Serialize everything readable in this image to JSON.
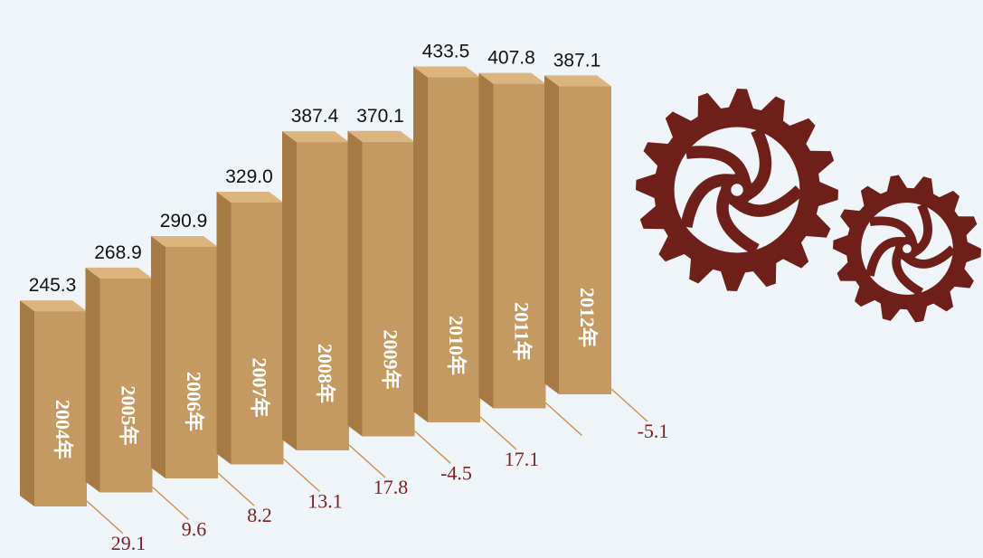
{
  "chart_data": {
    "type": "bar3d",
    "categories": [
      "2004年",
      "2005年",
      "2006年",
      "2007年",
      "2008年",
      "2009年",
      "2010年",
      "2011年",
      "2012年"
    ],
    "values": [
      245.3,
      268.9,
      290.9,
      329.0,
      387.4,
      370.1,
      433.5,
      407.8,
      387.1
    ],
    "value_labels": [
      "245.3",
      "268.9",
      "290.9",
      "329.0",
      "387.4",
      "370.1",
      "433.5",
      "407.8",
      "387.1"
    ],
    "growth": [
      29.1,
      9.6,
      8.2,
      13.1,
      17.8,
      -4.5,
      17.1,
      null,
      -5.1
    ],
    "growth_labels": [
      "29.1",
      "9.6",
      "8.2",
      "13.1",
      "17.8",
      "-4.5",
      "17.1",
      null,
      "-5.1"
    ],
    "color": "#c49a62",
    "growth_color": "#7a2222"
  }
}
